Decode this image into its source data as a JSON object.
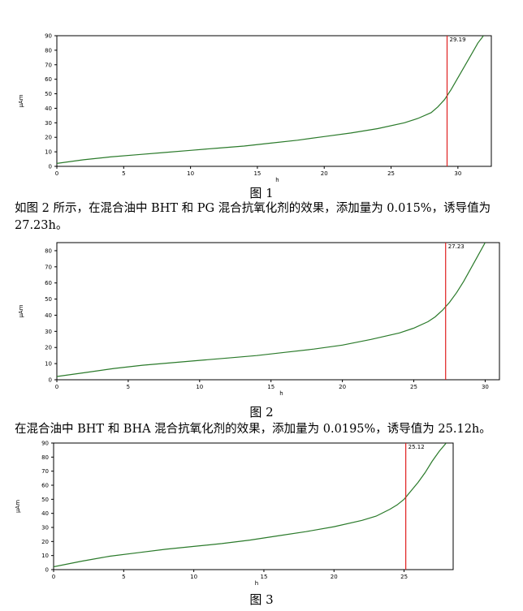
{
  "chart_data": [
    {
      "type": "line",
      "caption": "图 1",
      "xlabel": "h",
      "ylabel": "µAm",
      "xlim": [
        0,
        32.5
      ],
      "ylim": [
        0,
        90
      ],
      "xticks": [
        0,
        5,
        10,
        15,
        20,
        25,
        30
      ],
      "yticks": [
        0,
        10,
        20,
        30,
        40,
        50,
        60,
        70,
        80,
        90
      ],
      "induction_time": 29.19,
      "induction_label": "29.19",
      "series": [
        {
          "color": "#2a7a2a",
          "x": [
            0,
            2,
            4,
            6,
            8,
            10,
            12,
            14,
            16,
            18,
            20,
            22,
            24,
            26,
            27,
            28,
            28.5,
            29,
            29.5,
            30,
            30.5,
            31,
            31.5,
            32
          ],
          "y": [
            2,
            4.5,
            6.5,
            8,
            9.5,
            11,
            12.5,
            14,
            16,
            18,
            20.5,
            23,
            26,
            30,
            33,
            37,
            41,
            46,
            53,
            61,
            69,
            77,
            85,
            91
          ]
        }
      ],
      "marker_color": "#e02020"
    },
    {
      "type": "line",
      "caption": "图 2",
      "xlabel": "h",
      "ylabel": "µAm",
      "xlim": [
        0,
        31
      ],
      "ylim": [
        0,
        85
      ],
      "xticks": [
        0,
        5,
        10,
        15,
        20,
        25,
        30
      ],
      "yticks": [
        0,
        10,
        20,
        30,
        40,
        50,
        60,
        70,
        80
      ],
      "induction_time": 27.23,
      "induction_label": "27.23",
      "series": [
        {
          "color": "#2a7a2a",
          "x": [
            0,
            2,
            4,
            6,
            8,
            10,
            12,
            14,
            16,
            18,
            20,
            22,
            24,
            25,
            26,
            26.5,
            27,
            27.5,
            28,
            28.5,
            29,
            29.5,
            30
          ],
          "y": [
            2,
            4.5,
            7,
            9,
            10.5,
            12,
            13.5,
            15,
            17,
            19,
            21.5,
            25,
            29,
            32,
            36,
            39,
            43,
            48,
            54,
            61,
            69,
            77,
            85
          ]
        }
      ],
      "marker_color": "#e02020"
    },
    {
      "type": "line",
      "caption": "图 3",
      "xlabel": "h",
      "ylabel": "µAm",
      "xlim": [
        0,
        28.5
      ],
      "ylim": [
        0,
        90
      ],
      "xticks": [
        0,
        5,
        10,
        15,
        20,
        25
      ],
      "yticks": [
        0,
        10,
        20,
        30,
        40,
        50,
        60,
        70,
        80,
        90
      ],
      "induction_time": 25.12,
      "induction_label": "25.12",
      "series": [
        {
          "color": "#2a7a2a",
          "x": [
            0,
            2,
            4,
            6,
            8,
            10,
            12,
            14,
            16,
            18,
            20,
            22,
            23,
            24,
            24.5,
            25,
            25.5,
            26,
            26.5,
            27,
            27.5,
            28
          ],
          "y": [
            2,
            6,
            9.5,
            12,
            14.5,
            16.5,
            18.5,
            21,
            24,
            27,
            30.5,
            35,
            38,
            43,
            46,
            50,
            56,
            62,
            69,
            77,
            84,
            90
          ]
        }
      ],
      "marker_color": "#e02020"
    }
  ],
  "paragraphs": {
    "p1": "如图 2 所示，在混合油中 BHT 和 PG 混合抗氧化剂的效果，添加量为 0.015%，诱导值为 27.23h。",
    "p2": "在混合油中 BHT 和 BHA 混合抗氧化剂的效果，添加量为 0.0195%，诱导值为 25.12h。"
  }
}
